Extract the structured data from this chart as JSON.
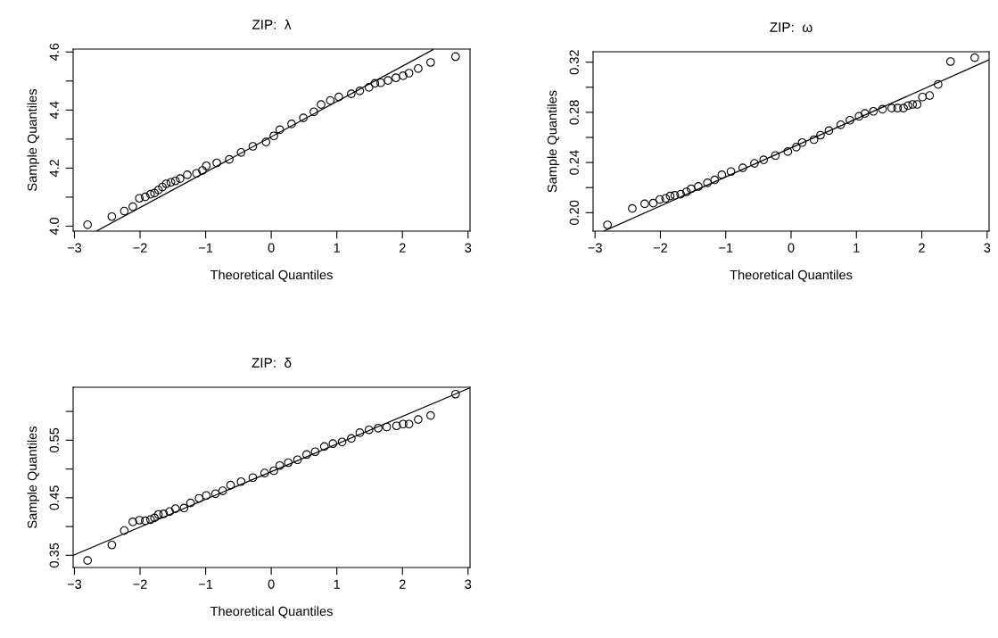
{
  "chart_data": [
    {
      "type": "scatter",
      "title": "ZIP:  λ",
      "xlabel": "Theoretical Quantiles",
      "ylabel": "Sample Quantiles",
      "grid": false,
      "legend": false,
      "xlim": [
        -3.02,
        3.03
      ],
      "xticks": [
        {
          "value": -3,
          "label": "−3"
        },
        {
          "value": -2,
          "label": "−2"
        },
        {
          "value": -1,
          "label": "−1"
        },
        0,
        1,
        2,
        3
      ],
      "ylim": [
        3.983,
        4.61
      ],
      "yticks": [
        {
          "value": 4.0,
          "label": "4.0"
        },
        {
          "value": 4.1,
          "label": null
        },
        {
          "value": 4.2,
          "label": "4.2"
        },
        {
          "value": 4.3,
          "label": null
        },
        {
          "value": 4.4,
          "label": "4.4"
        },
        {
          "value": 4.5,
          "label": null
        },
        {
          "value": 4.6,
          "label": "4.6"
        }
      ],
      "series": [
        {
          "marker": "circle",
          "color": "#000000",
          "x": [
            -2.8,
            -2.43,
            -2.24,
            -2.11,
            -2.01,
            -1.92,
            -1.84,
            -1.78,
            -1.72,
            -1.66,
            -1.6,
            -1.53,
            -1.46,
            -1.39,
            -1.28,
            -1.14,
            -1.05,
            -0.99,
            -0.83,
            -0.64,
            -0.46,
            -0.28,
            -0.08,
            0.04,
            0.13,
            0.31,
            0.49,
            0.65,
            0.76,
            0.9,
            1.03,
            1.22,
            1.35,
            1.49,
            1.58,
            1.67,
            1.78,
            1.9,
            2.01,
            2.1,
            2.24,
            2.43,
            2.81
          ],
          "values": [
            4.005,
            4.033,
            4.052,
            4.067,
            4.096,
            4.101,
            4.11,
            4.114,
            4.125,
            4.135,
            4.146,
            4.151,
            4.156,
            4.164,
            4.177,
            4.182,
            4.192,
            4.208,
            4.218,
            4.23,
            4.254,
            4.275,
            4.29,
            4.311,
            4.332,
            4.352,
            4.373,
            4.394,
            4.419,
            4.433,
            4.445,
            4.456,
            4.466,
            4.478,
            4.492,
            4.494,
            4.502,
            4.511,
            4.518,
            4.527,
            4.543,
            4.564,
            4.584
          ]
        },
        {
          "type": "line",
          "color": "#000000",
          "x": [
            -2.665,
            2.465
          ],
          "values": [
            3.983,
            4.608
          ]
        }
      ]
    },
    {
      "type": "scatter",
      "title": "ZIP:  ω",
      "xlabel": "Theoretical Quantiles",
      "ylabel": "Sample Quantiles",
      "grid": false,
      "legend": false,
      "xlim": [
        -3.03,
        3.03
      ],
      "xticks": [
        {
          "value": -3,
          "label": "−3"
        },
        {
          "value": -2,
          "label": "−2"
        },
        {
          "value": -1,
          "label": "−1"
        },
        0,
        1,
        2,
        3
      ],
      "ylim": [
        0.1853,
        0.3283
      ],
      "yticks": [
        {
          "value": 0.2,
          "label": "0.20"
        },
        {
          "value": 0.22,
          "label": null
        },
        {
          "value": 0.24,
          "label": "0.24"
        },
        {
          "value": 0.26,
          "label": null
        },
        {
          "value": 0.28,
          "label": "0.28"
        },
        {
          "value": 0.3,
          "label": null
        },
        {
          "value": 0.32,
          "label": "0.32"
        }
      ],
      "series": [
        {
          "marker": "circle",
          "color": "#000000",
          "x": [
            -2.81,
            -2.43,
            -2.24,
            -2.11,
            -2.01,
            -1.92,
            -1.85,
            -1.78,
            -1.69,
            -1.6,
            -1.53,
            -1.42,
            -1.28,
            -1.17,
            -1.06,
            -0.92,
            -0.74,
            -0.56,
            -0.42,
            -0.24,
            -0.05,
            0.08,
            0.17,
            0.35,
            0.45,
            0.58,
            0.76,
            0.9,
            1.04,
            1.13,
            1.26,
            1.4,
            1.54,
            1.63,
            1.72,
            1.79,
            1.86,
            1.93,
            2.01,
            2.12,
            2.25,
            2.44,
            2.81
          ],
          "values": [
            0.1903,
            0.2033,
            0.2071,
            0.2076,
            0.2105,
            0.2114,
            0.2133,
            0.2138,
            0.2147,
            0.2166,
            0.219,
            0.2209,
            0.2238,
            0.2261,
            0.2302,
            0.2328,
            0.2357,
            0.2393,
            0.2421,
            0.2456,
            0.2487,
            0.2523,
            0.2559,
            0.2582,
            0.2618,
            0.2654,
            0.2701,
            0.2737,
            0.2768,
            0.2791,
            0.2808,
            0.2825,
            0.2834,
            0.2834,
            0.2834,
            0.2853,
            0.2863,
            0.2863,
            0.2922,
            0.2934,
            0.3022,
            0.3205,
            0.3236
          ]
        },
        {
          "type": "line",
          "color": "#000000",
          "x": [
            -2.866,
            3.03
          ],
          "values": [
            0.1853,
            0.3219
          ]
        }
      ]
    },
    {
      "type": "scatter",
      "title": "ZIP:  δ",
      "xlabel": "Theoretical Quantiles",
      "ylabel": "Sample Quantiles",
      "grid": false,
      "legend": false,
      "xlim": [
        -3.02,
        3.03
      ],
      "xticks": [
        {
          "value": -3,
          "label": "−3"
        },
        {
          "value": -2,
          "label": "−2"
        },
        {
          "value": -1,
          "label": "−1"
        },
        0,
        1,
        2,
        3
      ],
      "ylim": [
        0.3288,
        0.642
      ],
      "yticks": [
        0.35,
        {
          "value": 0.4,
          "label": null
        },
        0.45,
        {
          "value": 0.5,
          "label": null
        },
        0.55,
        {
          "value": 0.6,
          "label": null
        }
      ],
      "series": [
        {
          "marker": "circle",
          "color": "#000000",
          "x": [
            -2.8,
            -2.43,
            -2.24,
            -2.11,
            -2.01,
            -1.92,
            -1.84,
            -1.78,
            -1.72,
            -1.64,
            -1.55,
            -1.46,
            -1.33,
            -1.23,
            -1.1,
            -0.99,
            -0.85,
            -0.74,
            -0.62,
            -0.46,
            -0.28,
            -0.1,
            0.04,
            0.13,
            0.26,
            0.4,
            0.54,
            0.67,
            0.81,
            0.94,
            1.08,
            1.22,
            1.35,
            1.49,
            1.63,
            1.76,
            1.91,
            2.01,
            2.1,
            2.24,
            2.43,
            2.81
          ],
          "values": [
            0.341,
            0.368,
            0.393,
            0.408,
            0.411,
            0.41,
            0.412,
            0.415,
            0.421,
            0.422,
            0.426,
            0.431,
            0.432,
            0.441,
            0.449,
            0.454,
            0.457,
            0.462,
            0.472,
            0.478,
            0.485,
            0.493,
            0.497,
            0.506,
            0.511,
            0.516,
            0.525,
            0.53,
            0.539,
            0.544,
            0.547,
            0.553,
            0.563,
            0.568,
            0.571,
            0.573,
            0.575,
            0.578,
            0.578,
            0.586,
            0.593,
            0.63
          ]
        },
        {
          "type": "line",
          "color": "#000000",
          "x": [
            -3.02,
            3.03
          ],
          "values": [
            0.35,
            0.641
          ]
        }
      ]
    }
  ]
}
